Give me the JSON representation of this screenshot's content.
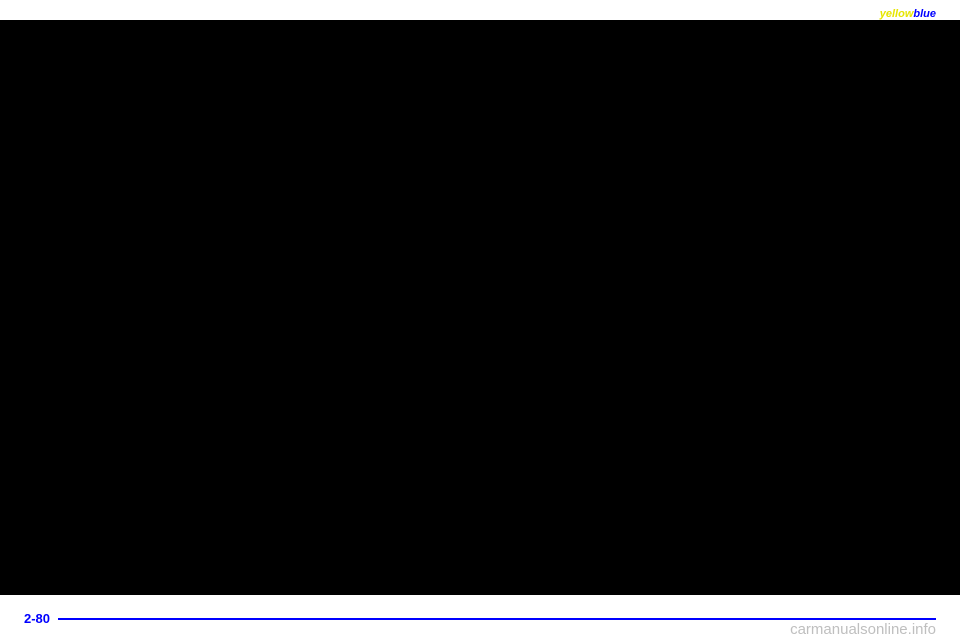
{
  "header": {
    "yellow_text": "yellow",
    "blue_text": "blue"
  },
  "footer": {
    "page_number": "2-80",
    "line_color": "#0000ff"
  },
  "watermark": {
    "text": "carmanualsonline.info",
    "color": "#bfbfbf"
  },
  "content": {
    "background_color": "#000000"
  }
}
